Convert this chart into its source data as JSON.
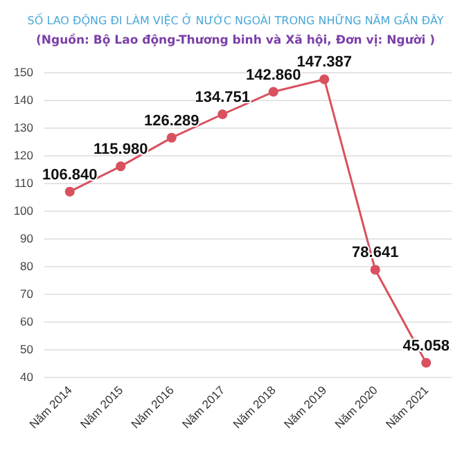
{
  "chart_data": {
    "type": "line",
    "title": "SỐ LAO ĐỘNG ĐI LÀM VIỆC Ở NƯỚC NGOÀI TRONG NHỮNG NĂM GẦN ĐÂY",
    "subtitle": "(Nguồn: Bộ Lao động-Thương binh và Xã hội, Đơn vị: Người )",
    "categories": [
      "Năm 2014",
      "Năm 2015",
      "Năm 2016",
      "Năm 2017",
      "Năm 2018",
      "Năm 2019",
      "Năm 2020",
      "Năm 2021"
    ],
    "series": [
      {
        "color": "#d9505e",
        "values": [
          106.84,
          115.98,
          126.289,
          134.751,
          142.86,
          147.387,
          78.641,
          45.058
        ],
        "value_labels": [
          "106.840",
          "115.980",
          "126.289",
          "134.751",
          "142.860",
          "147.387",
          "78.641",
          "45.058"
        ]
      }
    ],
    "ylim": [
      40,
      150
    ],
    "yticks": [
      40,
      50,
      60,
      70,
      80,
      90,
      100,
      110,
      120,
      130,
      140,
      150
    ],
    "grid": "y",
    "marker": "circle",
    "line_style": "solid"
  }
}
